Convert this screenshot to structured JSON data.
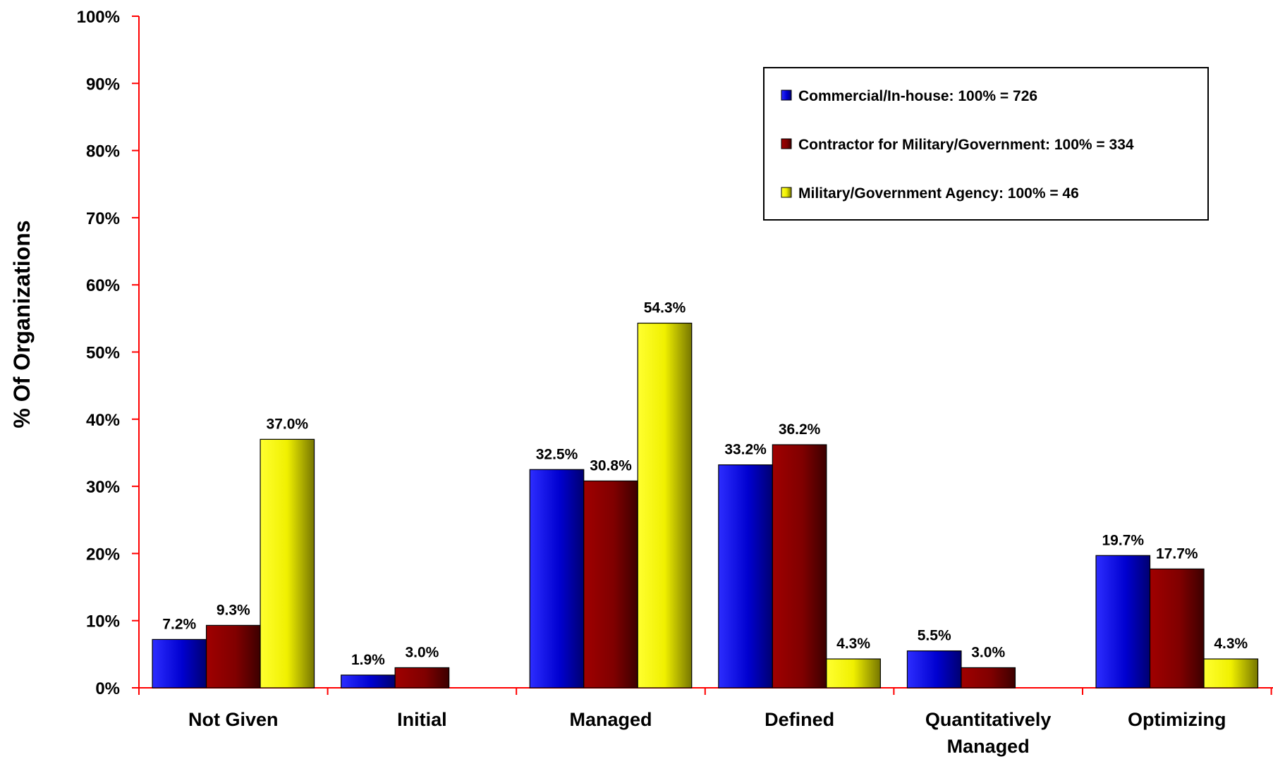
{
  "chart_data": {
    "type": "bar",
    "title": "",
    "xlabel": "",
    "ylabel": "% Of Organizations",
    "ylim": [
      0,
      100
    ],
    "y_ticks": [
      "0%",
      "10%",
      "20%",
      "30%",
      "40%",
      "50%",
      "60%",
      "70%",
      "80%",
      "90%",
      "100%"
    ],
    "categories": [
      [
        "Not Given"
      ],
      [
        "Initial"
      ],
      [
        "Managed"
      ],
      [
        "Defined"
      ],
      [
        "Quantitatively",
        "Managed"
      ],
      [
        "Optimizing"
      ]
    ],
    "series": [
      {
        "name": "Commercial/In-house: 100% = 726",
        "color": "#0000cc",
        "values": [
          7.2,
          1.9,
          32.5,
          33.2,
          5.5,
          19.7
        ],
        "labels": [
          "7.2%",
          "1.9%",
          "32.5%",
          "33.2%",
          "5.5%",
          "19.7%"
        ]
      },
      {
        "name": "Contractor for Military/Government: 100% = 334",
        "color": "#800000",
        "values": [
          9.3,
          3.0,
          30.8,
          36.2,
          3.0,
          17.7
        ],
        "labels": [
          "9.3%",
          "3.0%",
          "30.8%",
          "36.2%",
          "3.0%",
          "17.7%"
        ]
      },
      {
        "name": "Military/Government Agency: 100% = 46",
        "color": "#ffff00",
        "values": [
          37.0,
          null,
          54.3,
          4.3,
          null,
          4.3
        ],
        "labels": [
          "37.0%",
          null,
          "54.3%",
          "4.3%",
          null,
          "4.3%"
        ]
      }
    ],
    "axis_color": "#ff0000",
    "legend_position": "top-right",
    "grid": false
  }
}
